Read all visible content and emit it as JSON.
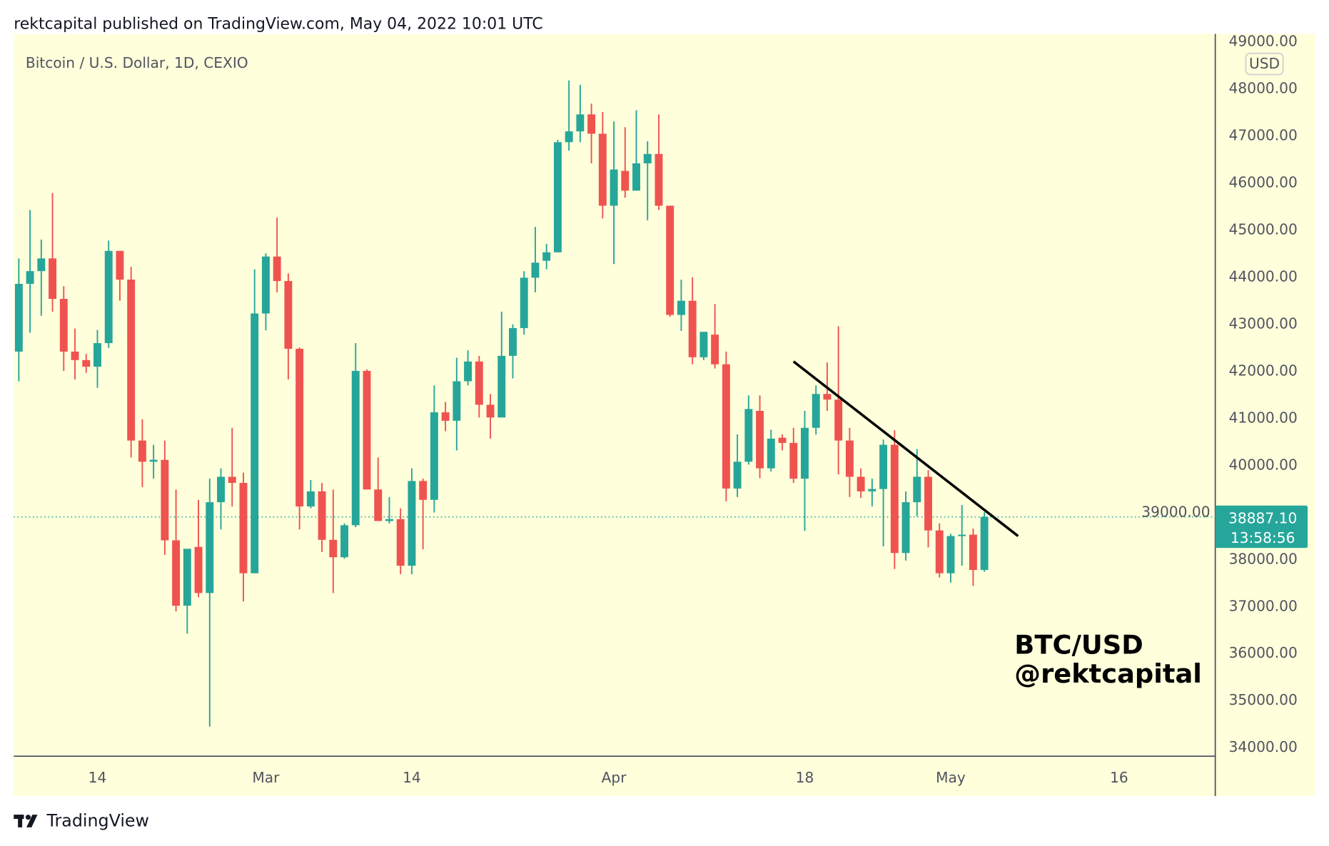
{
  "header": {
    "published": "rektcapital published on TradingView.com, May 04, 2022 10:01 UTC"
  },
  "legend": {
    "symbol": "Bitcoin / U.S. Dollar, 1D, CEXIO"
  },
  "price_axis": {
    "currency": "USD",
    "last_price": "38887.10",
    "countdown": "13:58:56"
  },
  "watermark": {
    "line1": "BTC/USD",
    "line2": "@rektcapital"
  },
  "footer": {
    "brand": "TradingView"
  },
  "colors": {
    "up": "#26a69a",
    "down": "#ef5350",
    "background": "#ffffdc",
    "trendline": "#000000"
  },
  "chart_data": {
    "type": "candlestick",
    "title": "Bitcoin / U.S. Dollar, 1D, CEXIO",
    "ylabel": "USD",
    "ylim": [
      34000,
      49000
    ],
    "y_ticks": [
      "34000.00",
      "35000.00",
      "36000.00",
      "37000.00",
      "38000.00",
      "39000.00",
      "40000.00",
      "41000.00",
      "42000.00",
      "43000.00",
      "44000.00",
      "45000.00",
      "46000.00",
      "47000.00",
      "48000.00",
      "49000.00"
    ],
    "x_ticks": [
      {
        "label": "14",
        "date": "2022-02-14"
      },
      {
        "label": "Mar",
        "date": "2022-03-01"
      },
      {
        "label": "14",
        "date": "2022-03-14"
      },
      {
        "label": "Apr",
        "date": "2022-04-01"
      },
      {
        "label": "18",
        "date": "2022-04-18"
      },
      {
        "label": "May",
        "date": "2022-05-01"
      },
      {
        "label": "16",
        "date": "2022-05-16"
      }
    ],
    "start_date": "2022-02-07",
    "ohlc_fields": [
      "open",
      "high",
      "low",
      "close"
    ],
    "candles": [
      [
        42400,
        44380,
        41770,
        43840
      ],
      [
        43840,
        45410,
        42800,
        44110
      ],
      [
        44110,
        44780,
        43160,
        44380
      ],
      [
        44380,
        45770,
        43250,
        43520
      ],
      [
        43520,
        43790,
        41990,
        42400
      ],
      [
        42400,
        42890,
        41810,
        42220
      ],
      [
        42220,
        42350,
        41950,
        42080
      ],
      [
        42080,
        42860,
        41630,
        42580
      ],
      [
        42580,
        44760,
        42480,
        44540
      ],
      [
        44540,
        44540,
        43480,
        43930
      ],
      [
        43930,
        44200,
        40150,
        40510
      ],
      [
        40510,
        40960,
        39520,
        40060
      ],
      [
        40060,
        40420,
        39700,
        40100
      ],
      [
        40100,
        40510,
        38080,
        38390
      ],
      [
        38390,
        39470,
        36880,
        37000
      ],
      [
        37000,
        38170,
        36410,
        38210
      ],
      [
        38250,
        39250,
        37180,
        37270
      ],
      [
        37270,
        39700,
        34430,
        39200
      ],
      [
        39200,
        39920,
        38620,
        39740
      ],
      [
        39740,
        40780,
        39110,
        39610
      ],
      [
        39610,
        39830,
        37090,
        37690
      ],
      [
        37690,
        44150,
        37690,
        43210
      ],
      [
        43210,
        44490,
        42850,
        44420
      ],
      [
        44420,
        45250,
        43660,
        43900
      ],
      [
        43900,
        44060,
        41810,
        42460
      ],
      [
        42460,
        42490,
        38620,
        39110
      ],
      [
        39110,
        39670,
        39070,
        39430
      ],
      [
        39430,
        39610,
        38140,
        38400
      ],
      [
        38400,
        39470,
        37270,
        38030
      ],
      [
        38030,
        38750,
        38000,
        38710
      ],
      [
        38710,
        42580,
        38670,
        41990
      ],
      [
        41990,
        42020,
        39470,
        39470
      ],
      [
        39470,
        40150,
        38800,
        38800
      ],
      [
        38800,
        39310,
        38750,
        38840
      ],
      [
        38840,
        39070,
        37670,
        37850
      ],
      [
        37850,
        39920,
        37670,
        39650
      ],
      [
        39650,
        39700,
        38200,
        39250
      ],
      [
        39250,
        41680,
        38980,
        41110
      ],
      [
        41110,
        41330,
        40710,
        40930
      ],
      [
        40930,
        42270,
        40300,
        41770
      ],
      [
        41770,
        42430,
        41680,
        42190
      ],
      [
        42190,
        42310,
        41000,
        41270
      ],
      [
        41270,
        41500,
        40550,
        41000
      ],
      [
        41000,
        43250,
        41050,
        42310
      ],
      [
        42310,
        42980,
        41830,
        42900
      ],
      [
        42900,
        44110,
        42760,
        43970
      ],
      [
        43970,
        45050,
        43660,
        44290
      ],
      [
        44330,
        44690,
        44150,
        44510
      ],
      [
        44510,
        46900,
        44510,
        46850
      ],
      [
        46850,
        48160,
        46670,
        47080
      ],
      [
        47080,
        48070,
        46850,
        47440
      ],
      [
        47440,
        47670,
        46400,
        47030
      ],
      [
        47030,
        47490,
        45230,
        45500
      ],
      [
        45500,
        47290,
        44260,
        46270
      ],
      [
        46240,
        47170,
        45670,
        45820
      ],
      [
        45820,
        47530,
        45820,
        46400
      ],
      [
        46400,
        46870,
        45190,
        46600
      ],
      [
        46600,
        47440,
        45410,
        45500
      ],
      [
        45500,
        45500,
        43140,
        43180
      ],
      [
        43180,
        43930,
        42840,
        43480
      ],
      [
        43480,
        43980,
        42130,
        42280
      ],
      [
        42280,
        42760,
        42220,
        42820
      ],
      [
        42760,
        43410,
        42040,
        42130
      ],
      [
        42130,
        42400,
        39220,
        39490
      ],
      [
        39490,
        40640,
        39310,
        40060
      ],
      [
        40060,
        41470,
        40000,
        41180
      ],
      [
        41140,
        41470,
        39710,
        39920
      ],
      [
        39920,
        40740,
        39850,
        40550
      ],
      [
        40570,
        40640,
        40300,
        40460
      ],
      [
        40460,
        40780,
        39610,
        39700
      ],
      [
        39700,
        41140,
        38590,
        40780
      ],
      [
        40780,
        41680,
        40640,
        41500
      ],
      [
        41500,
        42170,
        41140,
        41380
      ],
      [
        41380,
        42940,
        39790,
        40510
      ],
      [
        40510,
        40780,
        39310,
        39740
      ],
      [
        39740,
        39920,
        39290,
        39430
      ],
      [
        39430,
        39700,
        39110,
        39480
      ],
      [
        39480,
        40530,
        38260,
        40420
      ],
      [
        40420,
        40730,
        37780,
        38120
      ],
      [
        38120,
        39430,
        37960,
        39200
      ],
      [
        39200,
        40330,
        38900,
        39740
      ],
      [
        39740,
        39880,
        38240,
        38600
      ],
      [
        38600,
        38750,
        37600,
        37690
      ],
      [
        37690,
        38530,
        37490,
        38480
      ],
      [
        38480,
        39140,
        37850,
        38510
      ],
      [
        38510,
        38640,
        37420,
        37760
      ],
      [
        37760,
        38990,
        37720,
        38887.1
      ]
    ],
    "annotations": {
      "trendline": {
        "from": {
          "date": "2022-04-17",
          "price": 42190
        },
        "to": {
          "date": "2022-05-07",
          "price": 38480
        }
      },
      "last_price_line": 38887.1
    }
  }
}
